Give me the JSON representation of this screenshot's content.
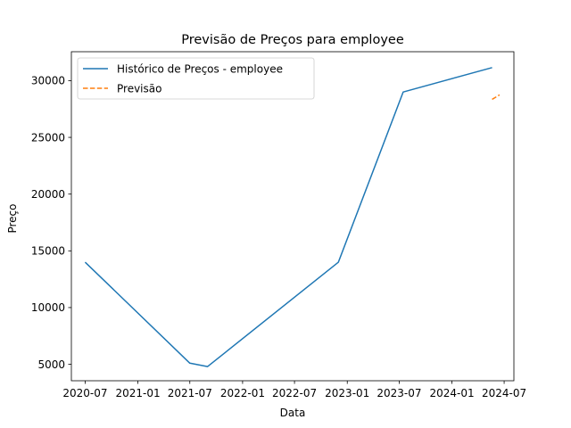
{
  "chart_data": {
    "type": "line",
    "title": "Previsão de Preços para employee",
    "xlabel": "Data",
    "ylabel": "Preço",
    "xlim": [
      "2020-05-14",
      "2024-08-04"
    ],
    "ylim": [
      3550,
      32550
    ],
    "x_ticks": [
      {
        "date": "2020-07-01",
        "label": "2020-07"
      },
      {
        "date": "2021-01-01",
        "label": "2021-01"
      },
      {
        "date": "2021-07-01",
        "label": "2021-07"
      },
      {
        "date": "2022-01-01",
        "label": "2022-01"
      },
      {
        "date": "2022-07-01",
        "label": "2022-07"
      },
      {
        "date": "2023-01-01",
        "label": "2023-01"
      },
      {
        "date": "2023-07-01",
        "label": "2023-07"
      },
      {
        "date": "2024-01-01",
        "label": "2024-01"
      },
      {
        "date": "2024-07-01",
        "label": "2024-07"
      }
    ],
    "y_ticks": [
      5000,
      10000,
      15000,
      20000,
      25000,
      30000
    ],
    "grid": false,
    "legend": "top-left",
    "series": [
      {
        "name": "Histórico de Preços - employee",
        "style": "solid",
        "color": "#1f77b4",
        "points": [
          {
            "x": "2020-07-01",
            "y": 14000
          },
          {
            "x": "2021-07-01",
            "y": 5100
          },
          {
            "x": "2021-09-01",
            "y": 4800
          },
          {
            "x": "2022-12-01",
            "y": 14000
          },
          {
            "x": "2023-07-15",
            "y": 29000
          },
          {
            "x": "2024-05-20",
            "y": 31150
          }
        ]
      },
      {
        "name": "Previsão",
        "style": "dashed",
        "color": "#ff7f0e",
        "points": [
          {
            "x": "2024-05-20",
            "y": 28350
          },
          {
            "x": "2024-06-15",
            "y": 28750
          }
        ]
      }
    ]
  }
}
